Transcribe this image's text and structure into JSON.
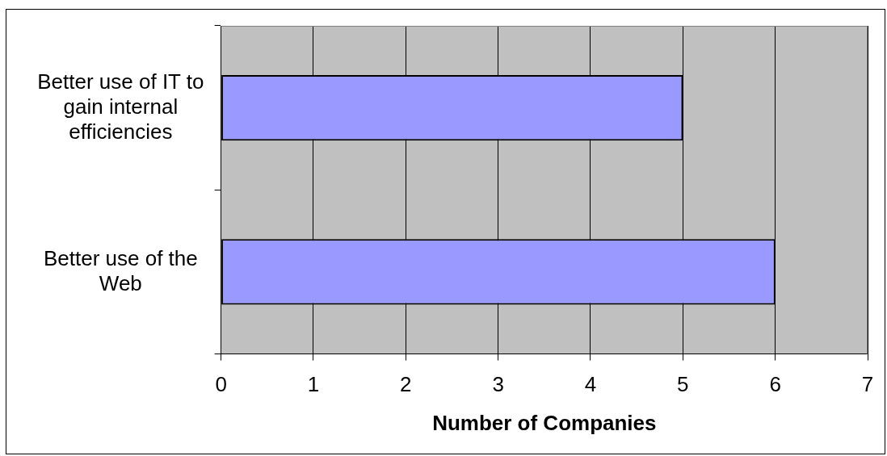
{
  "chart_data": {
    "type": "bar",
    "orientation": "horizontal",
    "categories": [
      "Better use of IT to gain internal efficiencies",
      "Better use of the Web"
    ],
    "values": [
      5,
      6
    ],
    "color": "#9999ff",
    "xlabel": "Number of Companies",
    "xlim": [
      0,
      7
    ],
    "xticks": [
      0,
      1,
      2,
      3,
      4,
      5,
      6,
      7
    ],
    "grid": "x"
  }
}
